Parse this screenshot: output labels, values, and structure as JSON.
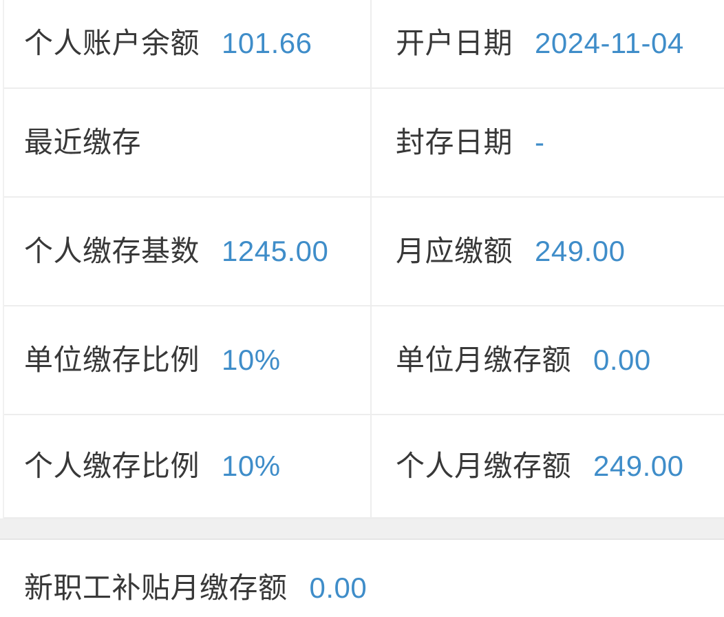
{
  "accent_color": "#3f8dc9",
  "label_color": "#383838",
  "divider_color": "#ededed",
  "separator_band_color": "#f0f0f0",
  "account_info": {
    "rows": [
      {
        "left": {
          "label": "个人账户余额",
          "value": "101.66"
        },
        "right": {
          "label": "开户日期",
          "value": "2024-11-04"
        }
      },
      {
        "left": {
          "label": "最近缴存",
          "value": ""
        },
        "right": {
          "label": "封存日期",
          "value": "-"
        }
      },
      {
        "left": {
          "label": "个人缴存基数",
          "value": "1245.00"
        },
        "right": {
          "label": "月应缴额",
          "value": "249.00"
        }
      },
      {
        "left": {
          "label": "单位缴存比例",
          "value": "10%"
        },
        "right": {
          "label": "单位月缴存额",
          "value": "0.00"
        }
      },
      {
        "left": {
          "label": "个人缴存比例",
          "value": "10%"
        },
        "right": {
          "label": "个人月缴存额",
          "value": "249.00"
        }
      }
    ],
    "footer": {
      "label": "新职工补贴月缴存额",
      "value": "0.00"
    }
  }
}
